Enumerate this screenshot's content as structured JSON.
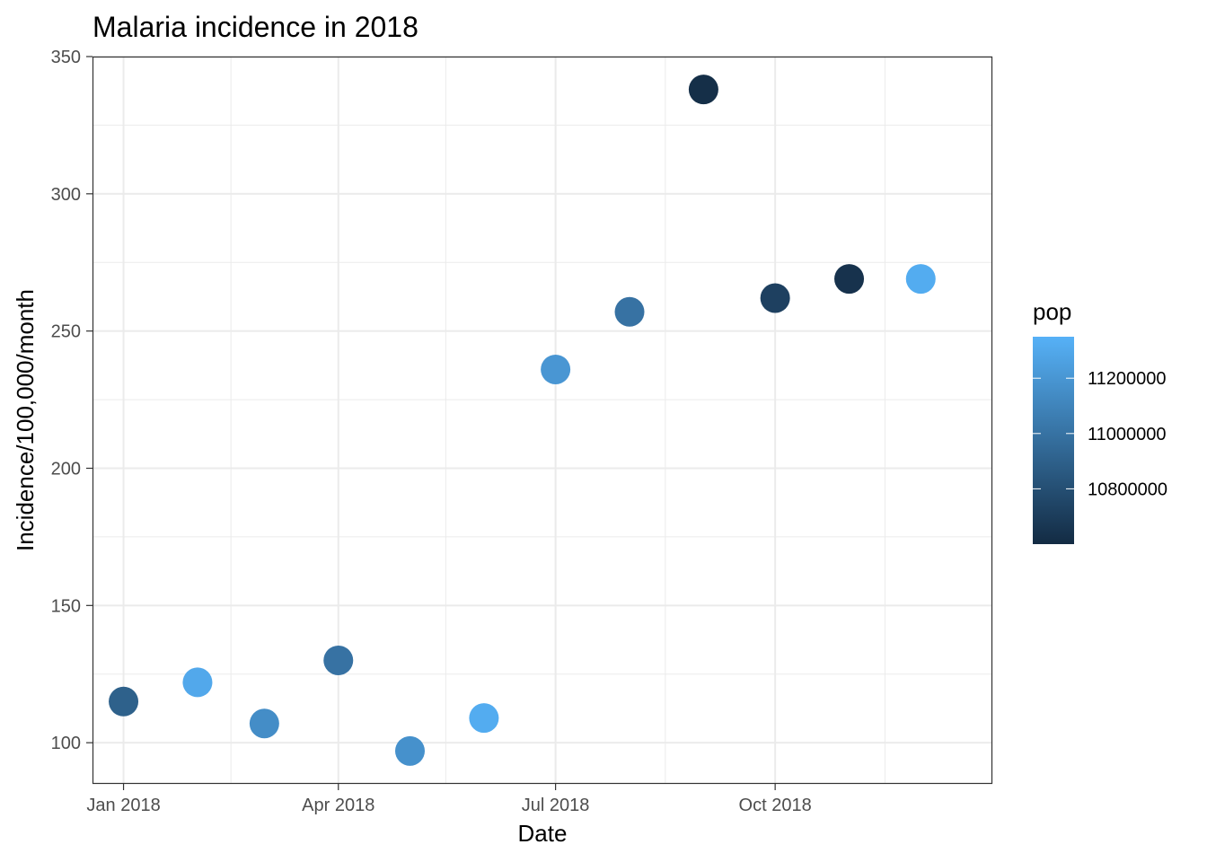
{
  "chart_data": {
    "type": "scatter",
    "title": "Malaria incidence in 2018",
    "xlabel": "Date",
    "ylabel": "Incidence/100,000/month",
    "xlim": [
      "2017-12-19",
      "2018-12-31"
    ],
    "ylim": [
      85,
      350
    ],
    "y_ticks": [
      100,
      150,
      200,
      250,
      300,
      350
    ],
    "x_ticks": [
      {
        "date": "2018-01-01",
        "label": "Jan 2018"
      },
      {
        "date": "2018-04-01",
        "label": "Apr 2018"
      },
      {
        "date": "2018-07-01",
        "label": "Jul 2018"
      },
      {
        "date": "2018-10-01",
        "label": "Oct 2018"
      }
    ],
    "x_minor_ticks": [
      "2018-02-15",
      "2018-05-16",
      "2018-08-16",
      "2018-11-16"
    ],
    "y_minor_ticks": [
      125,
      175,
      225,
      275,
      325
    ],
    "grid": true,
    "points": [
      {
        "x": "2018-01-01",
        "y": 115,
        "pop": 10900000
      },
      {
        "x": "2018-02-01",
        "y": 122,
        "pop": 11300000
      },
      {
        "x": "2018-03-01",
        "y": 107,
        "pop": 11150000
      },
      {
        "x": "2018-04-01",
        "y": 130,
        "pop": 11000000
      },
      {
        "x": "2018-05-01",
        "y": 97,
        "pop": 11170000
      },
      {
        "x": "2018-06-01",
        "y": 109,
        "pop": 11320000
      },
      {
        "x": "2018-07-01",
        "y": 236,
        "pop": 11200000
      },
      {
        "x": "2018-08-01",
        "y": 257,
        "pop": 11000000
      },
      {
        "x": "2018-09-01",
        "y": 338,
        "pop": 10620000
      },
      {
        "x": "2018-10-01",
        "y": 262,
        "pop": 10720000
      },
      {
        "x": "2018-11-01",
        "y": 269,
        "pop": 10640000
      },
      {
        "x": "2018-12-01",
        "y": 269,
        "pop": 11320000
      }
    ],
    "color_scale": {
      "name": "pop",
      "low_color": "#132B43",
      "high_color": "#56B1F7",
      "min": 10600000,
      "max": 11350000,
      "ticks": [
        11200000,
        11000000,
        10800000
      ],
      "tick_labels": [
        "11200000",
        "11000000",
        "10800000"
      ],
      "legend_position": "right"
    }
  }
}
